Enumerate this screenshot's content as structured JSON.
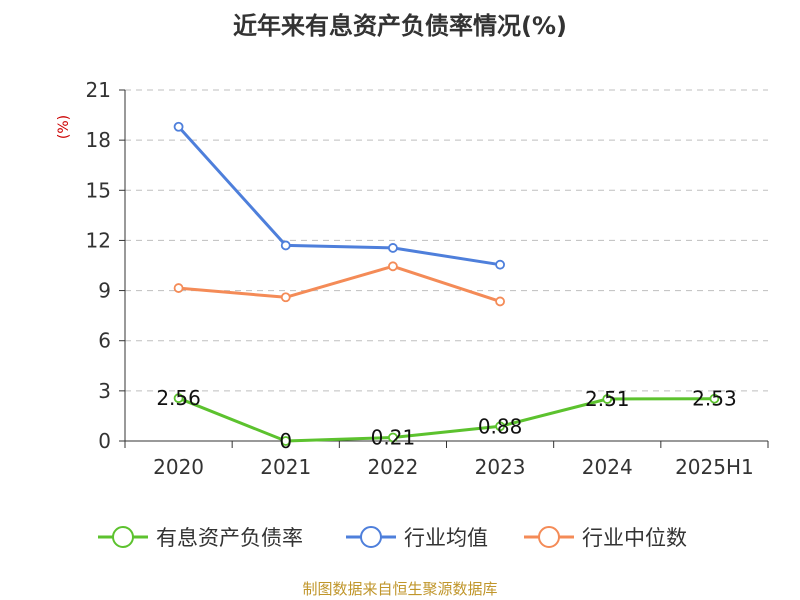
{
  "chart_data": {
    "type": "line",
    "title": "近年来有息资产负债率情况(%)",
    "ylabel": "(%)",
    "ylim": [
      0,
      21
    ],
    "yticks": [
      "0",
      "3",
      "6",
      "9",
      "12",
      "15",
      "18",
      "21"
    ],
    "yticks_values": [
      0,
      3,
      6,
      9,
      12,
      15,
      18,
      21
    ],
    "categories": [
      "2020",
      "2021",
      "2022",
      "2023",
      "2024",
      "2025H1"
    ],
    "grid": true,
    "legend_position": "bottom",
    "series": [
      {
        "name": "有息资产负债率",
        "color": "#5CC22E",
        "values": [
          2.56,
          0,
          0.21,
          0.88,
          2.51,
          2.53
        ],
        "labels": [
          "2.56",
          "0",
          "0.21",
          "0.88",
          "2.51",
          "2.53"
        ]
      },
      {
        "name": "行业均值",
        "color": "#4E7FDB",
        "values": [
          18.8,
          11.7,
          11.55,
          10.55,
          null,
          null
        ]
      },
      {
        "name": "行业中位数",
        "color": "#F48B57",
        "values": [
          9.15,
          8.6,
          10.45,
          8.35,
          null,
          null
        ]
      }
    ],
    "source": "制图数据来自恒生聚源数据库",
    "ylabel_color": "#CC0000",
    "source_color": "#C0962B"
  }
}
